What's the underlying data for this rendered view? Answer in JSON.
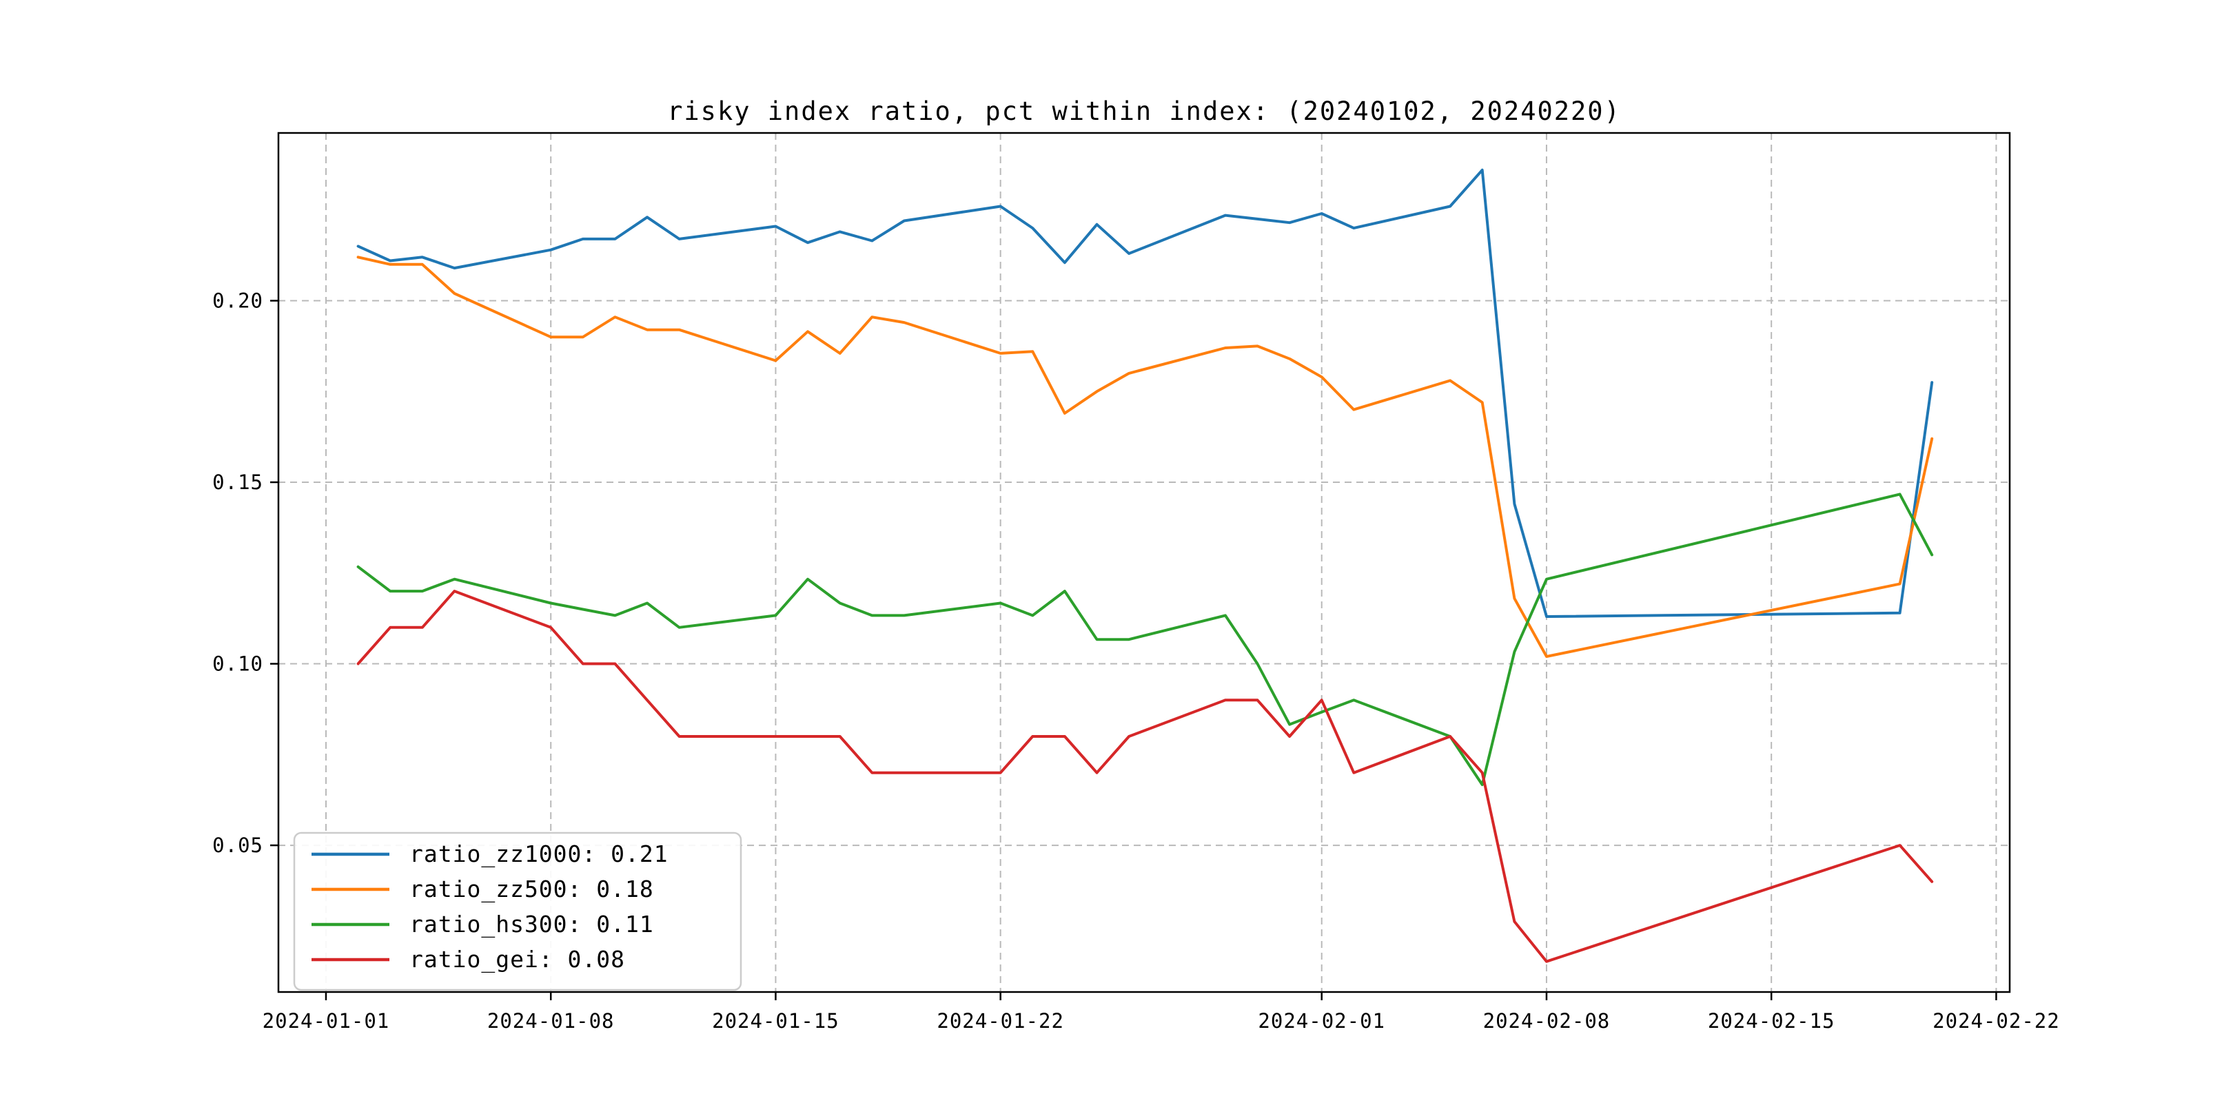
{
  "chart_data": {
    "type": "line",
    "title": "risky index ratio, pct within index: (20240102, 20240220)",
    "xlabel": "",
    "ylabel": "",
    "grid": true,
    "legend_position": "lower left",
    "x_tick_labels": [
      "2024-01-01",
      "2024-01-08",
      "2024-01-15",
      "2024-01-22",
      "2024-02-01",
      "2024-02-08",
      "2024-02-15",
      "2024-02-22"
    ],
    "y_tick_labels": [
      "0.05",
      "0.10",
      "0.15",
      "0.20"
    ],
    "y_tick_values": [
      0.05,
      0.1,
      0.15,
      0.2
    ],
    "xlim_days_from_2024_01_01": [
      -1.48,
      52.42
    ],
    "ylim": [
      0.0096,
      0.2462
    ],
    "dates": [
      "2024-01-02",
      "2024-01-03",
      "2024-01-04",
      "2024-01-05",
      "2024-01-08",
      "2024-01-09",
      "2024-01-10",
      "2024-01-11",
      "2024-01-12",
      "2024-01-15",
      "2024-01-16",
      "2024-01-17",
      "2024-01-18",
      "2024-01-19",
      "2024-01-22",
      "2024-01-23",
      "2024-01-24",
      "2024-01-25",
      "2024-01-26",
      "2024-01-29",
      "2024-01-30",
      "2024-01-31",
      "2024-02-01",
      "2024-02-02",
      "2024-02-05",
      "2024-02-06",
      "2024-02-07",
      "2024-02-08",
      "2024-02-19",
      "2024-02-20"
    ],
    "series": [
      {
        "name": "ratio_zz1000",
        "legend_label": "ratio_zz1000: 0.21",
        "color": "#1f77b4",
        "values": [
          0.215,
          0.211,
          0.212,
          0.209,
          0.214,
          0.217,
          0.217,
          0.223,
          0.217,
          0.2205,
          0.216,
          0.219,
          0.2165,
          0.222,
          0.226,
          0.22,
          0.2105,
          0.221,
          0.213,
          0.2235,
          0.2225,
          0.2215,
          0.224,
          0.22,
          0.226,
          0.236,
          0.144,
          0.113,
          0.114,
          0.1775
        ]
      },
      {
        "name": "ratio_zz500",
        "legend_label": "ratio_zz500: 0.18",
        "color": "#ff7f0e",
        "values": [
          0.212,
          0.21,
          0.21,
          0.202,
          0.19,
          0.19,
          0.1955,
          0.192,
          0.192,
          0.1835,
          0.1915,
          0.1855,
          0.1955,
          0.194,
          0.1855,
          0.186,
          0.169,
          0.175,
          0.18,
          0.187,
          0.1875,
          0.184,
          0.179,
          0.17,
          0.178,
          0.172,
          0.118,
          0.102,
          0.122,
          0.162
        ]
      },
      {
        "name": "ratio_hs300",
        "legend_label": "ratio_hs300: 0.11",
        "color": "#2ca02c",
        "values": [
          0.1267,
          0.12,
          0.12,
          0.1233,
          0.1167,
          0.115,
          0.1133,
          0.1167,
          0.11,
          0.1133,
          0.1233,
          0.1167,
          0.1133,
          0.1133,
          0.1167,
          0.1133,
          0.12,
          0.1067,
          0.1067,
          0.1133,
          0.1,
          0.0833,
          0.0867,
          0.09,
          0.08,
          0.0667,
          0.1033,
          0.1233,
          0.1467,
          0.13
        ]
      },
      {
        "name": "ratio_gei",
        "legend_label": "ratio_gei: 0.08",
        "color": "#d62728",
        "values": [
          0.1,
          0.11,
          0.11,
          0.12,
          0.11,
          0.1,
          0.1,
          0.09,
          0.08,
          0.08,
          0.08,
          0.08,
          0.07,
          0.07,
          0.07,
          0.08,
          0.08,
          0.07,
          0.08,
          0.09,
          0.09,
          0.08,
          0.09,
          0.07,
          0.08,
          0.07,
          0.029,
          0.018,
          0.05,
          0.04
        ]
      }
    ],
    "style": {
      "line_color_zz1000": "#1f77b4",
      "line_color_zz500": "#ff7f0e",
      "line_color_hs300": "#2ca02c",
      "line_color_gei": "#d62728",
      "grid_color": "#b9b9b9",
      "spine_color": "#000000",
      "legend_border_color": "#cccccc",
      "background_color": "#ffffff"
    }
  }
}
